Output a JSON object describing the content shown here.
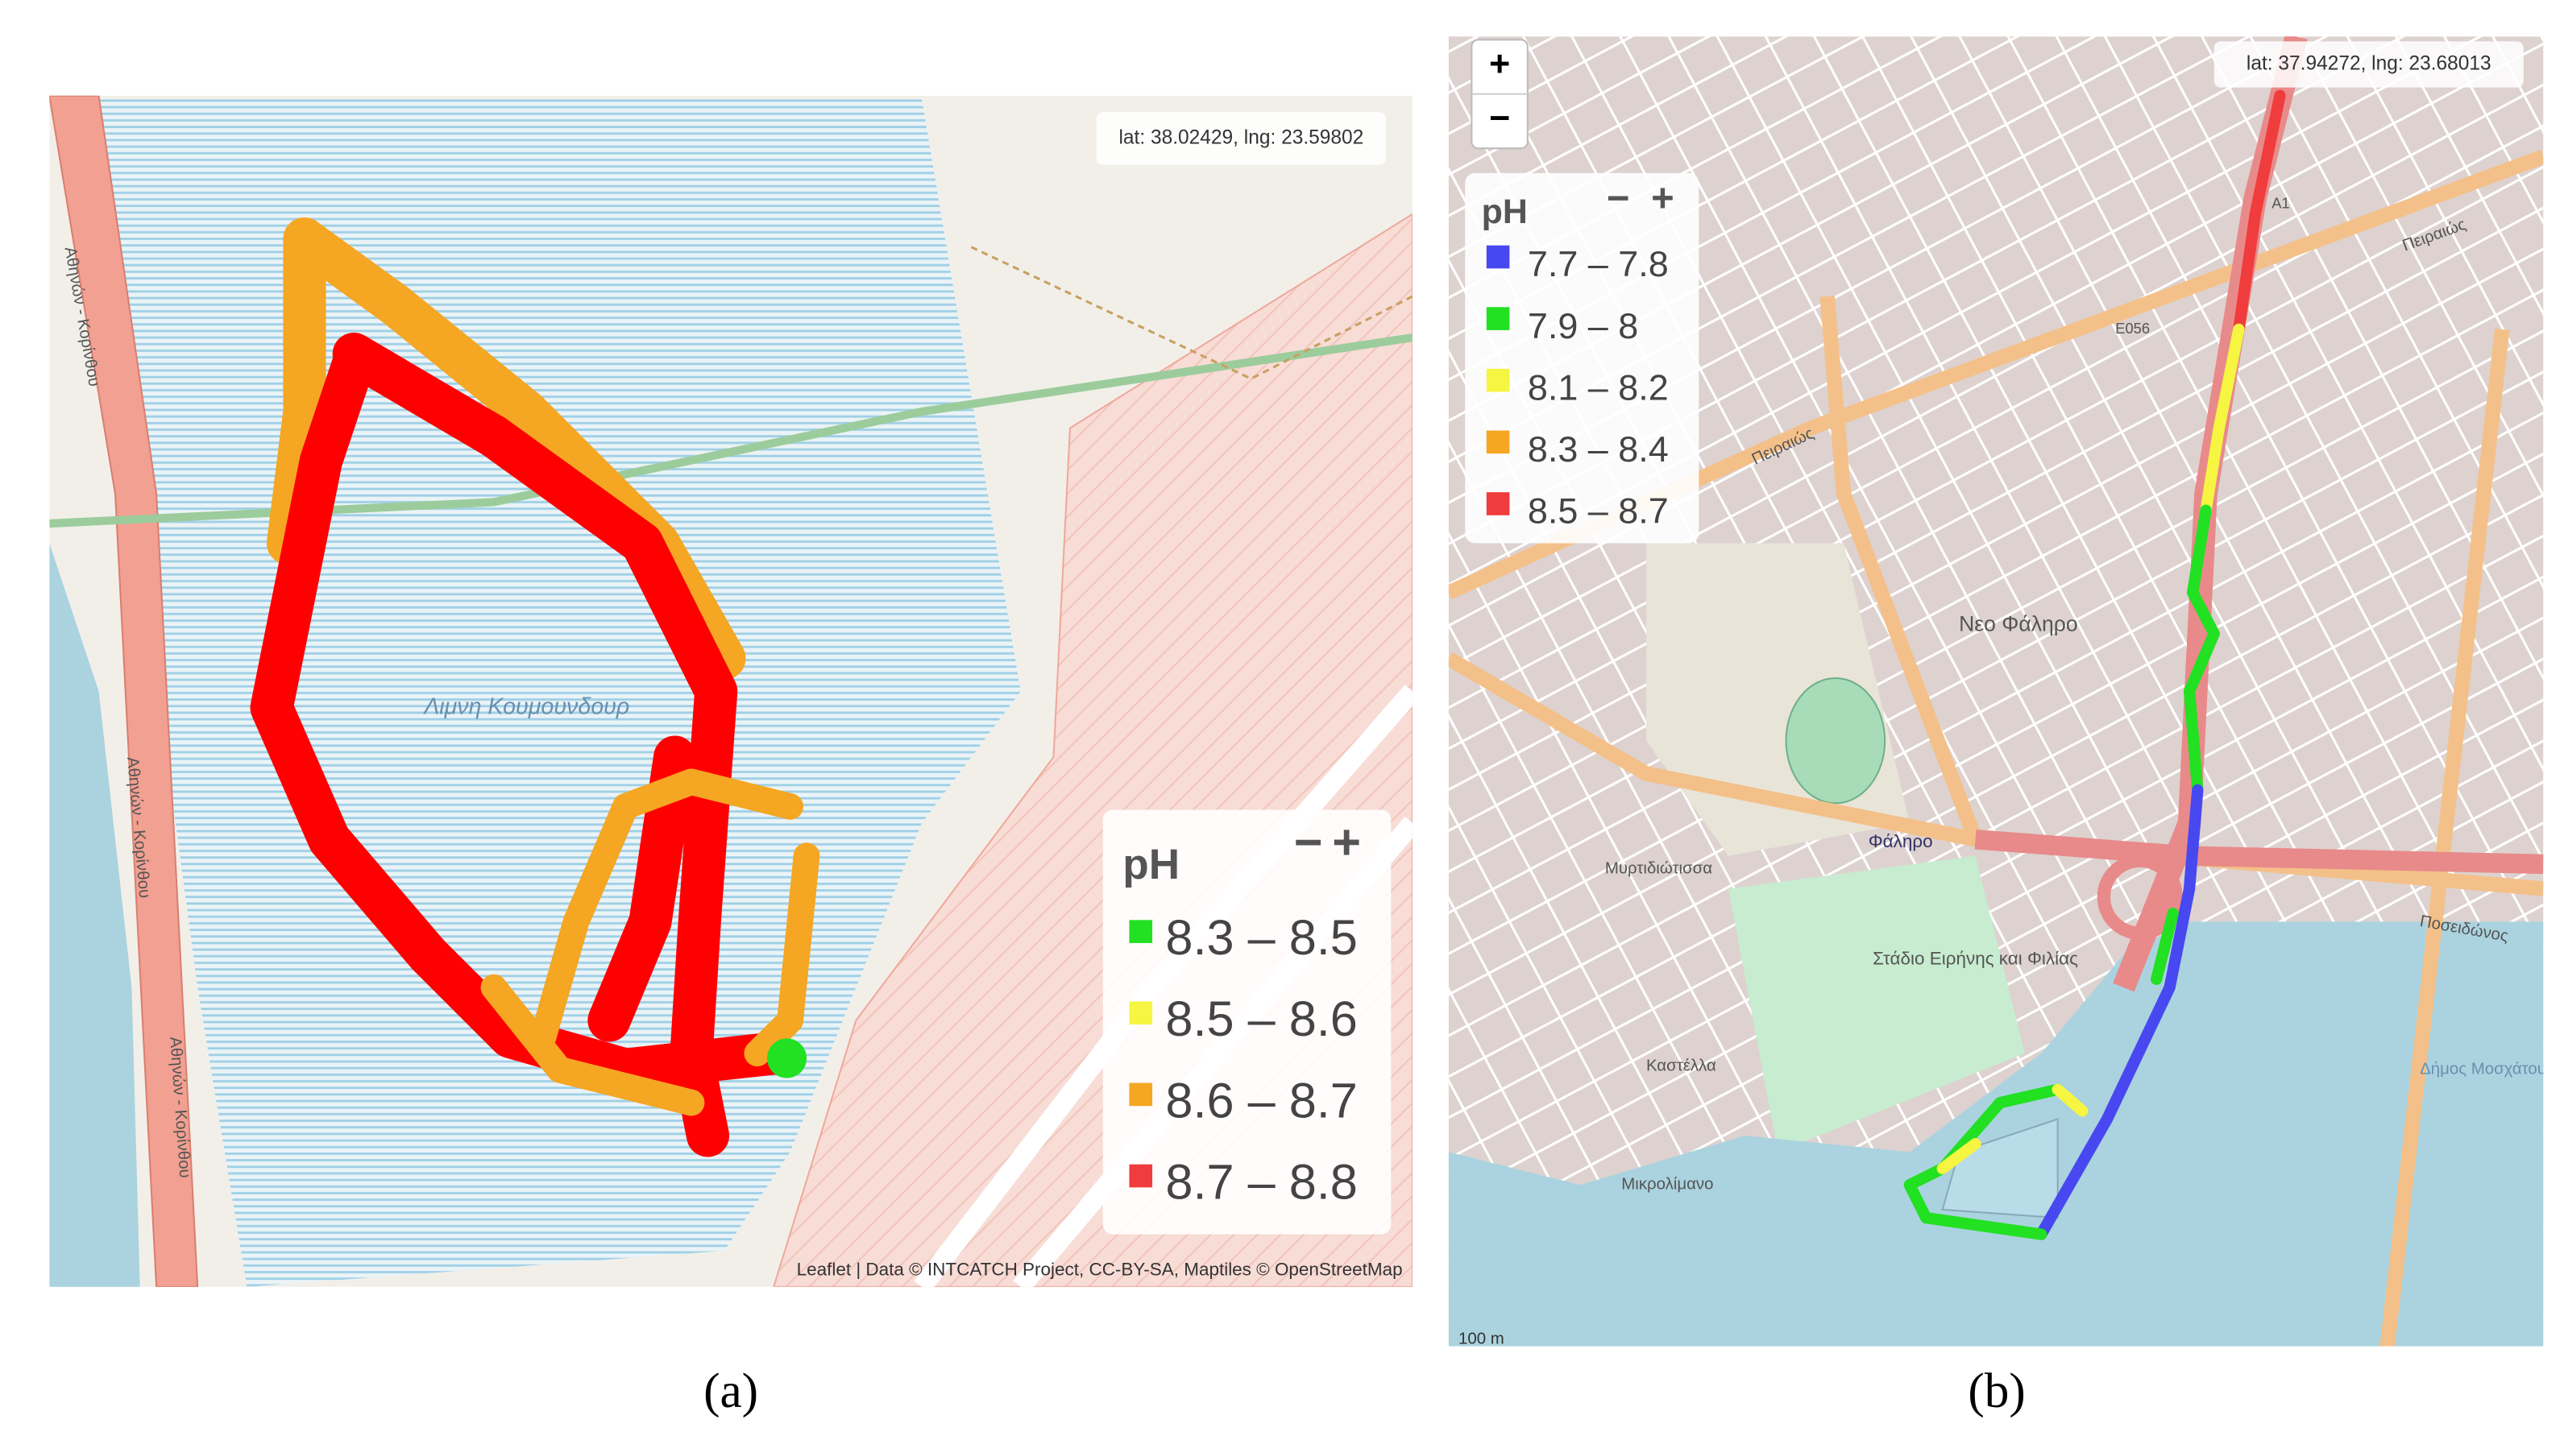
{
  "panels": [
    {
      "caption": "(a)",
      "coords": "lat: 38.02429, lng: 23.59802",
      "legend": {
        "title": "pH",
        "collapse": "−",
        "expand": "+",
        "items": [
          {
            "label": "8.3 – 8.5",
            "color": "#22e022"
          },
          {
            "label": "8.5 – 8.6",
            "color": "#f5f542"
          },
          {
            "label": "8.6 – 8.7",
            "color": "#f5a623"
          },
          {
            "label": "8.7 – 8.8",
            "color": "#f03c3c"
          }
        ]
      },
      "attribution": "Leaflet | Data © INTCATCH Project, CC-BY-SA, Maptiles © OpenStreetMap",
      "map_labels": [
        "Λιμνη Κουμουνδουρ",
        "Αθηνών - Κορίνθου",
        "Αθηνών - Κορίνθου",
        "Αθηνών - Κορίνθου"
      ]
    },
    {
      "caption": "(b)",
      "coords": "lat: 37.94272, lng: 23.68013",
      "zoom_in": "+",
      "zoom_out": "−",
      "legend": {
        "title": "pH",
        "collapse": "−",
        "expand": "+",
        "items": [
          {
            "label": "7.7 – 7.8",
            "color": "#4848f0"
          },
          {
            "label": "7.9 – 8",
            "color": "#22e022"
          },
          {
            "label": "8.1 – 8.2",
            "color": "#f5f542"
          },
          {
            "label": "8.3 – 8.4",
            "color": "#f5a623"
          },
          {
            "label": "8.5 – 8.7",
            "color": "#f03c3c"
          }
        ]
      },
      "scale": "100 m",
      "map_labels": [
        "Νεο Φάληρο",
        "Φάληρο",
        "Στάδιο Ειρήνης και Φιλίας",
        "Πειραιώς",
        "Ποσειδώνος",
        "Μικρολίμανο",
        "Καστέλλα",
        "Μυρτιδιώτισσα",
        "E056",
        "A1",
        "Δήμος Μοσχάτου Ταύρου",
        "Πειραιώς"
      ]
    }
  ]
}
